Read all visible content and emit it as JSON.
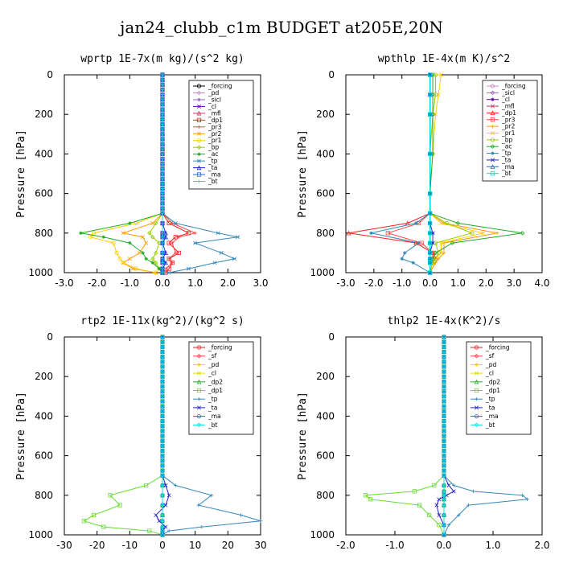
{
  "figure_title": "jan24_clubb_c1m  BUDGET at205E,20N",
  "chart_data": [
    {
      "type": "line",
      "title": "wprtp  1E-7x(m kg)/(s^2 kg)",
      "ylabel": "Pressure [hPa]",
      "xlim": [
        -3.0,
        3.0
      ],
      "ylim": [
        1000,
        0
      ],
      "xticks": [
        "-3.0",
        "-2.0",
        "-1.0",
        "0.0",
        "1.0",
        "2.0",
        "3.0"
      ],
      "yticks": [
        "0",
        "200",
        "400",
        "600",
        "800",
        "1000"
      ],
      "legend_position": "upper-right",
      "levels": [
        700,
        750,
        800,
        820,
        850,
        900,
        930,
        950,
        980,
        1000
      ],
      "series": [
        {
          "name": "_forcing",
          "color": "#000000",
          "values": [
            0,
            0,
            0,
            0,
            0,
            0,
            0,
            0,
            0,
            0
          ]
        },
        {
          "name": "_pd",
          "color": "#cc88cc",
          "values": [
            0,
            0,
            0,
            0,
            0,
            0,
            0,
            0,
            0,
            0
          ]
        },
        {
          "name": "_sicl",
          "color": "#9966cc",
          "values": [
            0,
            0,
            0,
            0,
            0,
            0,
            0,
            0,
            0,
            0
          ]
        },
        {
          "name": "_cl",
          "color": "#6600aa",
          "values": [
            0,
            0,
            0,
            0,
            0,
            0,
            0,
            0,
            0,
            0
          ]
        },
        {
          "name": "_mfl",
          "color": "#cc3366",
          "values": [
            0,
            0,
            0,
            0,
            0,
            0,
            0,
            0,
            0,
            0
          ]
        },
        {
          "name": "_dp1",
          "color": "#ee2222",
          "values": [
            0,
            0.2,
            0.8,
            0.4,
            0.2,
            0.5,
            0.2,
            0.3,
            0.2,
            0.1
          ]
        },
        {
          "name": "_pr3",
          "color": "#ff4444",
          "values": [
            0,
            0.3,
            1.0,
            0.5,
            0.3,
            0.4,
            0.2,
            0.3,
            0.1,
            0.1
          ]
        },
        {
          "name": "_pr2",
          "color": "#ff9900",
          "values": [
            0,
            -0.3,
            -1.2,
            -0.6,
            -0.5,
            -0.7,
            -1.0,
            -1.2,
            -0.9,
            -0.2
          ]
        },
        {
          "name": "_pr1",
          "color": "#ffcc00",
          "values": [
            0,
            -0.8,
            -2.1,
            -2.2,
            -1.5,
            -1.4,
            -1.3,
            -1.2,
            -0.8,
            -0.2
          ]
        },
        {
          "name": "_bp",
          "color": "#99cc00",
          "values": [
            0,
            -0.2,
            -0.4,
            -0.3,
            -0.1,
            -0.2,
            -0.3,
            -0.2,
            -0.1,
            0
          ]
        },
        {
          "name": "_ac",
          "color": "#22aa22",
          "values": [
            0,
            -1.0,
            -2.5,
            -1.8,
            -1.0,
            -0.6,
            -0.5,
            -0.3,
            -0.1,
            0
          ]
        },
        {
          "name": "_tp",
          "color": "#3388bb",
          "values": [
            0,
            0.4,
            1.7,
            2.3,
            1.0,
            1.8,
            2.2,
            1.6,
            0.8,
            0.2
          ]
        },
        {
          "name": "_ta",
          "color": "#2222cc",
          "values": [
            0,
            0,
            0.1,
            0.1,
            0,
            0.1,
            0,
            0.1,
            0,
            0
          ]
        },
        {
          "name": "_ma",
          "color": "#2266ee",
          "values": [
            0,
            0,
            0,
            0,
            0,
            0,
            0,
            0,
            0,
            0
          ]
        },
        {
          "name": "_bt",
          "color": "#00e0e0",
          "values": [
            0,
            0,
            0,
            0,
            0,
            0,
            0,
            0,
            0,
            0
          ]
        }
      ]
    },
    {
      "type": "line",
      "title": "wpthlp  1E-4x(m K)/s^2",
      "ylabel": "Pressure [hPa]",
      "xlim": [
        -3.0,
        4.0
      ],
      "ylim": [
        1000,
        0
      ],
      "xticks": [
        "-3.0",
        "-2.0",
        "-1.0",
        "0.0",
        "1.0",
        "2.0",
        "3.0",
        "4.0"
      ],
      "yticks": [
        "0",
        "200",
        "400",
        "600",
        "800",
        "1000"
      ],
      "legend_position": "upper-right",
      "levels": [
        0,
        100,
        200,
        400,
        600,
        700,
        750,
        800,
        850,
        900,
        930,
        950,
        1000
      ],
      "series": [
        {
          "name": "_forcing",
          "color": "#cc88cc",
          "values": [
            0,
            0,
            0,
            0,
            0,
            0,
            0,
            0,
            0,
            0,
            0,
            0,
            0
          ]
        },
        {
          "name": "_sicl",
          "color": "#9966cc",
          "values": [
            0,
            0,
            0,
            0,
            0,
            0,
            0,
            0,
            0,
            0,
            0,
            0,
            0
          ]
        },
        {
          "name": "_cl",
          "color": "#6600aa",
          "values": [
            0,
            0,
            0,
            0,
            0,
            0,
            0,
            0,
            0,
            0,
            0,
            0,
            0
          ]
        },
        {
          "name": "_mfl",
          "color": "#cc3366",
          "values": [
            0,
            0,
            0,
            0,
            0,
            0,
            0,
            0,
            0,
            0,
            0,
            0,
            0
          ]
        },
        {
          "name": "_dp1",
          "color": "#ee2222",
          "values": [
            0,
            0,
            0,
            0,
            0,
            0,
            -0.8,
            -2.9,
            -0.5,
            0.1,
            0.2,
            0.1,
            0
          ]
        },
        {
          "name": "_pr3",
          "color": "#ff4444",
          "values": [
            0,
            0,
            0,
            0,
            0,
            0,
            -0.4,
            -1.5,
            -0.3,
            0.1,
            0.1,
            0,
            0
          ]
        },
        {
          "name": "_pr2",
          "color": "#ff9900",
          "values": [
            0,
            0,
            0,
            0,
            0,
            0,
            0.5,
            2.4,
            0.5,
            0.5,
            0.3,
            0.2,
            0
          ]
        },
        {
          "name": "_pr1",
          "color": "#ffcc00",
          "values": [
            0.4,
            0.3,
            0.2,
            0.1,
            0,
            0,
            0.4,
            1.9,
            0.4,
            0.4,
            0.2,
            0.1,
            0
          ]
        },
        {
          "name": "_bp",
          "color": "#99cc00",
          "values": [
            0.2,
            0.2,
            0.1,
            0,
            0,
            0,
            0.6,
            1.5,
            0.2,
            0.3,
            0.2,
            0.1,
            0
          ]
        },
        {
          "name": "_ac",
          "color": "#22aa22",
          "values": [
            0.1,
            0.1,
            0.1,
            0.1,
            0,
            0,
            1.0,
            3.3,
            0.8,
            0.2,
            0.1,
            0,
            0
          ]
        },
        {
          "name": "_tp",
          "color": "#3388bb",
          "values": [
            0,
            0,
            0,
            0,
            0,
            0,
            -0.5,
            -2.1,
            -0.4,
            -0.9,
            -1.0,
            -0.6,
            0
          ]
        },
        {
          "name": "_ta",
          "color": "#2222cc",
          "values": [
            0,
            0,
            0,
            0,
            0,
            0,
            0,
            0.1,
            0.1,
            0,
            0,
            0,
            0
          ]
        },
        {
          "name": "_ma",
          "color": "#2266ee",
          "values": [
            0,
            0,
            0,
            0,
            0,
            0,
            0,
            0,
            0,
            0,
            0,
            0,
            0
          ]
        },
        {
          "name": "_bt",
          "color": "#00e0e0",
          "values": [
            0,
            0,
            0,
            0,
            0,
            0,
            0,
            0,
            0,
            0,
            0,
            0,
            0
          ]
        }
      ]
    },
    {
      "type": "line",
      "title": "rtp2  1E-11x(kg^2)/(kg^2 s)",
      "ylabel": "Pressure [hPa]",
      "xlim": [
        -30,
        30
      ],
      "ylim": [
        1000,
        0
      ],
      "xticks": [
        "-30",
        "-20",
        "-10",
        "0",
        "10",
        "20",
        "30"
      ],
      "yticks": [
        "0",
        "200",
        "400",
        "600",
        "800",
        "1000"
      ],
      "legend_position": "upper-right",
      "levels": [
        700,
        750,
        800,
        850,
        900,
        930,
        960,
        980,
        1000
      ],
      "series": [
        {
          "name": "_forcing",
          "color": "#ee2222",
          "values": [
            0,
            0,
            0,
            0,
            0,
            0,
            0,
            0,
            0
          ]
        },
        {
          "name": "_sf",
          "color": "#ff4444",
          "values": [
            0,
            0,
            0,
            0,
            0,
            0,
            0,
            0,
            0
          ]
        },
        {
          "name": "_pd",
          "color": "#ffcc00",
          "values": [
            0,
            0,
            0,
            0,
            0,
            0,
            0,
            0,
            0
          ]
        },
        {
          "name": "_cl",
          "color": "#dddd00",
          "values": [
            0,
            0,
            0,
            0,
            0,
            0,
            0,
            0,
            0
          ]
        },
        {
          "name": "_dp2",
          "color": "#22aa22",
          "values": [
            0,
            0,
            0,
            0,
            0,
            0,
            0,
            0,
            0
          ]
        },
        {
          "name": "_dp1",
          "color": "#66dd33",
          "values": [
            0,
            -5,
            -16,
            -13,
            -21,
            -24,
            -18,
            -4,
            0
          ]
        },
        {
          "name": "_tp",
          "color": "#3388bb",
          "values": [
            0,
            4,
            15,
            11,
            24,
            30,
            12,
            2,
            0
          ]
        },
        {
          "name": "_ta",
          "color": "#2222cc",
          "values": [
            0,
            1,
            2,
            1,
            -2,
            -1,
            1,
            0,
            0
          ]
        },
        {
          "name": "_ma",
          "color": "#2266ee",
          "values": [
            0,
            0,
            0,
            0,
            0,
            0,
            0,
            0,
            0
          ]
        },
        {
          "name": "_bt",
          "color": "#00e0e0",
          "values": [
            0,
            0,
            0,
            0,
            0,
            0,
            0,
            0,
            0
          ]
        }
      ]
    },
    {
      "type": "line",
      "title": "thlp2  1E-4x(K^2)/s",
      "ylabel": "Pressure [hPa]",
      "xlim": [
        -2.0,
        2.0
      ],
      "ylim": [
        1000,
        0
      ],
      "xticks": [
        "-2.0",
        "-1.0",
        "0.0",
        "1.0",
        "2.0"
      ],
      "yticks": [
        "0",
        "200",
        "400",
        "600",
        "800",
        "1000"
      ],
      "legend_position": "upper-right",
      "levels": [
        700,
        750,
        780,
        800,
        820,
        850,
        900,
        950,
        1000
      ],
      "series": [
        {
          "name": "_forcing",
          "color": "#ee2222",
          "values": [
            0,
            0,
            0,
            0,
            0,
            0,
            0,
            0,
            0
          ]
        },
        {
          "name": "_sf",
          "color": "#ff4444",
          "values": [
            0,
            0,
            0,
            0,
            0,
            0,
            0,
            0,
            0
          ]
        },
        {
          "name": "_pd",
          "color": "#ffcc00",
          "values": [
            0,
            0,
            0,
            0,
            0,
            0,
            0,
            0,
            0
          ]
        },
        {
          "name": "_cl",
          "color": "#dddd00",
          "values": [
            0,
            0,
            0,
            0,
            0,
            0,
            0,
            0,
            0
          ]
        },
        {
          "name": "_dp2",
          "color": "#22aa22",
          "values": [
            0,
            0,
            0,
            0,
            0,
            0,
            0,
            0,
            0
          ]
        },
        {
          "name": "_dp1",
          "color": "#66dd33",
          "values": [
            0,
            -0.2,
            -0.6,
            -1.6,
            -1.5,
            -0.5,
            -0.3,
            -0.1,
            0
          ]
        },
        {
          "name": "_tp",
          "color": "#3388bb",
          "values": [
            0,
            0.2,
            0.6,
            1.6,
            1.7,
            0.5,
            0.3,
            0.1,
            0
          ]
        },
        {
          "name": "_ta",
          "color": "#2222cc",
          "values": [
            0,
            0.1,
            0.2,
            0.05,
            -0.1,
            -0.15,
            -0.1,
            0,
            0
          ]
        },
        {
          "name": "_ma",
          "color": "#2266ee",
          "values": [
            0,
            0,
            0,
            0,
            0,
            0,
            0,
            0,
            0
          ]
        },
        {
          "name": "_bt",
          "color": "#00e0e0",
          "values": [
            0,
            0,
            0,
            0,
            0,
            0,
            0,
            0,
            0
          ]
        }
      ]
    }
  ]
}
